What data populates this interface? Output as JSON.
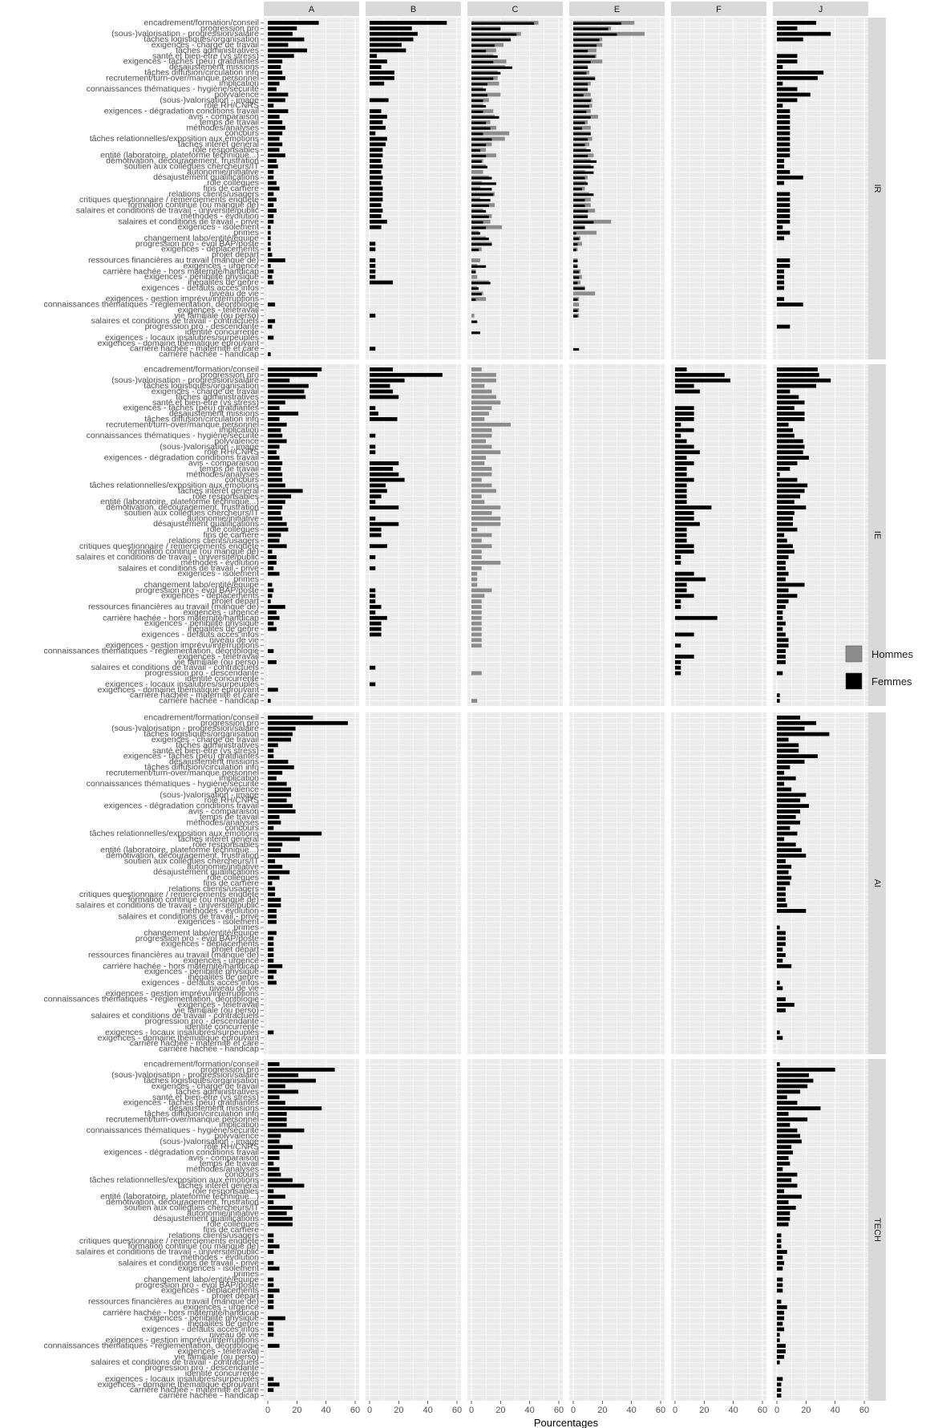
{
  "chart_data": {
    "type": "bar",
    "orientation": "horizontal",
    "facet_columns": [
      "A",
      "B",
      "C",
      "E",
      "F",
      "J"
    ],
    "facet_rows": [
      "IR",
      "IE",
      "AI",
      "TECH"
    ],
    "xlabel": "Pourcentages",
    "xlim": [
      0,
      60
    ],
    "x_ticks": [
      0,
      20,
      40,
      60
    ],
    "legend": {
      "placement": "right",
      "entries": [
        "Hommes",
        "Femmes"
      ]
    },
    "colors": {
      "Hommes": "#8c8c8c",
      "Femmes": "#000000",
      "panel_bg": "#ebebeb",
      "grid": "#ffffff",
      "strip_bg": "#d9d9d9"
    },
    "grid": true,
    "categories": [
      "encadrement/formation/conseil",
      "progression pro",
      "(sous-)valorisation - progression/salaire",
      "tâches logistiques/organisation",
      "exigences - charge de travail",
      "tâches administratives",
      "santé et bien-être (vs stress)",
      "exigences - tâches (peu) gratifiantes",
      "désajustement missions",
      "tâches diffusion/circulation info",
      "recrutement/turn-over/manque personnel",
      "implication",
      "connaissances thématiques - hygiène/sécurité",
      "polyvalence",
      "(sous-)valorisation - image",
      "rôle RH/CNRS",
      "exigences - dégradation conditions travail",
      "avis - comparaison",
      "temps de travail",
      "méthodes/analyses",
      "concours",
      "tâches relationnelles/exposition aux émotions",
      "tâches intérêt général",
      "rôle responsables",
      "entité (laboratoire, plateforme technique...)",
      "démotivation, découragement, frustration",
      "soutien aux collègues chercheurs/IT",
      "autonomie/initiative",
      "désajustement qualifications",
      "rôle collègues",
      "fins de carrière",
      "relations clients/usagers",
      "critiques questionnaire / remerciements enquête",
      "formation continue (ou manque de)",
      "salaires et conditions de travail - université/public",
      "méthodes - évolution",
      "salaires et conditions de travail - privé",
      "exigences - isolement",
      "primes",
      "changement labo/entité/équipe",
      "progression pro - évol BAP/poste",
      "exigences - déplacements",
      "projet départ",
      "ressources financières au travail (manque de)",
      "exigences - urgence",
      "carrière hachée - hors maternité/handicap",
      "exigences - pénibilité physique",
      "inégalités de genre",
      "exigences - défauts accès infos",
      "niveau de vie",
      "exigences - gestion imprévu/interruptions",
      "connaissances thématiques - réglementation, déontologie",
      "exigences - télétravail",
      "vie familiale (ou perso)",
      "salaires et conditions de travail - contractuels",
      "progression pro - descendante",
      "identité concurrente",
      "exigences - locaux insalubres/surpeuplés",
      "exigences - domaine thématique éprouvant",
      "carrière hachée - maternité et care",
      "carrière hachée - handicap"
    ],
    "panels": [
      {
        "row": "IR",
        "col": "A",
        "Femmes": [
          35,
          20,
          17,
          25,
          14,
          27,
          18,
          10,
          9,
          10,
          12,
          8,
          6,
          14,
          12,
          4,
          14,
          8,
          10,
          12,
          10,
          8,
          10,
          8,
          12,
          6,
          7,
          4,
          4,
          6,
          8,
          4,
          6,
          4,
          6,
          4,
          4,
          2,
          2,
          2,
          2,
          2,
          3,
          12,
          2,
          4,
          3,
          4,
          0,
          0,
          0,
          5,
          0,
          0,
          5,
          3,
          0,
          4,
          0,
          0,
          2
        ],
        "Hommes": []
      },
      {
        "row": "IR",
        "col": "B",
        "Femmes": [
          53,
          29,
          33,
          30,
          22,
          25,
          5,
          12,
          8,
          17,
          17,
          10,
          0,
          0,
          13,
          0,
          8,
          12,
          9,
          11,
          4,
          12,
          11,
          9,
          9,
          8,
          9,
          8,
          9,
          8,
          9,
          9,
          9,
          8,
          9,
          8,
          12,
          8,
          0,
          0,
          4,
          4,
          0,
          4,
          4,
          4,
          4,
          16,
          0,
          0,
          0,
          0,
          0,
          4,
          0,
          0,
          0,
          0,
          0,
          4,
          0
        ],
        "Hommes": []
      },
      {
        "row": "IR",
        "col": "C",
        "Femmes": [
          43,
          20,
          31,
          27,
          16,
          10,
          18,
          15,
          28,
          20,
          15,
          11,
          10,
          11,
          8,
          10,
          8,
          19,
          10,
          13,
          8,
          14,
          10,
          6,
          10,
          7,
          11,
          0,
          14,
          17,
          14,
          15,
          13,
          12,
          10,
          12,
          8,
          10,
          6,
          12,
          14,
          5,
          0,
          0,
          10,
          3,
          0,
          13,
          5,
          7,
          3,
          0,
          0,
          0,
          4,
          0,
          6,
          0,
          0,
          0,
          0
        ],
        "Hommes": [
          46,
          20,
          34,
          27,
          22,
          17,
          15,
          24,
          23,
          18,
          18,
          19,
          8,
          20,
          12,
          8,
          15,
          16,
          13,
          17,
          26,
          23,
          14,
          10,
          17,
          8,
          10,
          8,
          12,
          7,
          6,
          16,
          6,
          16,
          8,
          14,
          13,
          21,
          5,
          10,
          14,
          7,
          0,
          6,
          4,
          3,
          4,
          12,
          4,
          8,
          10,
          0,
          0,
          2,
          0,
          0,
          0,
          0,
          0,
          0,
          0
        ]
      },
      {
        "row": "IR",
        "col": "E",
        "Femmes": [
          33,
          24,
          30,
          18,
          16,
          10,
          15,
          12,
          10,
          9,
          15,
          10,
          10,
          7,
          12,
          11,
          9,
          12,
          8,
          6,
          12,
          10,
          8,
          12,
          10,
          16,
          14,
          14,
          8,
          10,
          6,
          14,
          8,
          8,
          10,
          10,
          14,
          8,
          2,
          4,
          3,
          2,
          0,
          3,
          3,
          4,
          4,
          3,
          8,
          0,
          3,
          0,
          3,
          3,
          0,
          0,
          0,
          0,
          0,
          4,
          0
        ],
        "Hommes": [
          42,
          26,
          49,
          20,
          20,
          16,
          16,
          20,
          10,
          11,
          15,
          12,
          10,
          12,
          13,
          13,
          12,
          17,
          10,
          12,
          12,
          13,
          11,
          9,
          14,
          12,
          12,
          8,
          10,
          9,
          8,
          11,
          12,
          12,
          15,
          10,
          26,
          8,
          16,
          5,
          6,
          3,
          0,
          3,
          3,
          5,
          6,
          5,
          8,
          15,
          4,
          4,
          4,
          4,
          0,
          0,
          0,
          0,
          0,
          0,
          0
        ]
      },
      {
        "row": "IR",
        "col": "F",
        "Femmes": [],
        "Hommes": []
      },
      {
        "row": "IR",
        "col": "J",
        "Femmes": [
          27,
          14,
          37,
          18,
          0,
          0,
          14,
          14,
          4,
          32,
          28,
          4,
          14,
          23,
          14,
          4,
          9,
          9,
          9,
          9,
          9,
          9,
          9,
          9,
          9,
          5,
          5,
          9,
          18,
          5,
          0,
          9,
          9,
          9,
          9,
          9,
          9,
          4,
          9,
          5,
          0,
          0,
          0,
          9,
          9,
          5,
          5,
          5,
          5,
          0,
          5,
          18,
          0,
          0,
          0,
          9,
          0,
          0,
          0,
          0,
          0
        ],
        "Hommes": []
      },
      {
        "row": "IE",
        "col": "A",
        "Femmes": [
          37,
          34,
          15,
          28,
          25,
          26,
          12,
          8,
          21,
          8,
          13,
          9,
          10,
          13,
          8,
          6,
          8,
          10,
          9,
          10,
          10,
          12,
          24,
          16,
          12,
          10,
          9,
          10,
          13,
          14,
          9,
          8,
          13,
          3,
          6,
          6,
          4,
          8,
          0,
          3,
          4,
          3,
          2,
          12,
          6,
          8,
          4,
          6,
          0,
          0,
          0,
          4,
          0,
          6,
          0,
          0,
          0,
          0,
          7,
          0,
          2
        ],
        "Hommes": []
      },
      {
        "row": "IE",
        "col": "B",
        "Femmes": [
          16,
          50,
          24,
          14,
          16,
          20,
          0,
          4,
          6,
          19,
          0,
          0,
          4,
          0,
          4,
          4,
          0,
          20,
          16,
          20,
          24,
          11,
          12,
          8,
          4,
          20,
          0,
          4,
          20,
          8,
          8,
          0,
          12,
          0,
          4,
          0,
          4,
          0,
          0,
          0,
          4,
          4,
          4,
          8,
          4,
          12,
          8,
          8,
          8,
          0,
          0,
          0,
          0,
          0,
          4,
          0,
          0,
          4,
          0,
          0,
          0
        ],
        "Hommes": []
      },
      {
        "row": "IE",
        "col": "C",
        "Femmes": [],
        "Hommes": [
          7,
          17,
          17,
          9,
          14,
          17,
          20,
          14,
          12,
          9,
          27,
          14,
          14,
          10,
          14,
          20,
          10,
          9,
          14,
          14,
          7,
          14,
          17,
          7,
          9,
          20,
          14,
          20,
          20,
          4,
          14,
          7,
          14,
          7,
          7,
          20,
          7,
          4,
          4,
          4,
          14,
          9,
          7,
          7,
          7,
          7,
          7,
          7,
          7,
          7,
          7,
          0,
          0,
          0,
          0,
          7,
          0,
          0,
          0,
          0,
          4
        ]
      },
      {
        "row": "IE",
        "col": "E",
        "Femmes": [],
        "Hommes": []
      },
      {
        "row": "IE",
        "col": "F",
        "Femmes": [
          8,
          34,
          38,
          13,
          17,
          0,
          0,
          13,
          13,
          13,
          4,
          13,
          4,
          8,
          13,
          17,
          8,
          13,
          8,
          8,
          13,
          8,
          8,
          8,
          8,
          25,
          13,
          13,
          17,
          8,
          8,
          8,
          13,
          13,
          4,
          4,
          0,
          13,
          21,
          8,
          8,
          13,
          4,
          4,
          0,
          29,
          0,
          0,
          13,
          0,
          4,
          0,
          13,
          4,
          4,
          4,
          0,
          0,
          0,
          0,
          0
        ],
        "Hommes": []
      },
      {
        "row": "IE",
        "col": "J",
        "Femmes": [
          28,
          29,
          37,
          27,
          9,
          15,
          19,
          12,
          19,
          19,
          8,
          11,
          12,
          18,
          19,
          18,
          22,
          14,
          9,
          2,
          14,
          21,
          19,
          16,
          12,
          20,
          12,
          11,
          11,
          14,
          5,
          7,
          11,
          12,
          8,
          6,
          6,
          8,
          6,
          19,
          8,
          14,
          8,
          6,
          4,
          4,
          6,
          4,
          6,
          8,
          8,
          6,
          6,
          6,
          0,
          4,
          0,
          0,
          0,
          2,
          2
        ],
        "Hommes": []
      },
      {
        "row": "AI",
        "col": "A",
        "Femmes": [
          31,
          55,
          19,
          17,
          16,
          7,
          4,
          4,
          14,
          18,
          10,
          6,
          13,
          16,
          16,
          13,
          17,
          19,
          8,
          9,
          4,
          37,
          22,
          10,
          9,
          22,
          5,
          10,
          15,
          8,
          3,
          5,
          5,
          9,
          9,
          6,
          6,
          6,
          0,
          6,
          4,
          4,
          4,
          4,
          4,
          10,
          6,
          4,
          6,
          0,
          0,
          0,
          0,
          0,
          0,
          0,
          0,
          4,
          0,
          0,
          0
        ],
        "Hommes": []
      },
      {
        "row": "AI",
        "col": "J",
        "Femmes": [
          16,
          27,
          19,
          36,
          8,
          15,
          15,
          28,
          19,
          9,
          5,
          13,
          5,
          10,
          20,
          16,
          22,
          16,
          13,
          16,
          9,
          14,
          5,
          13,
          17,
          20,
          6,
          10,
          8,
          10,
          9,
          6,
          6,
          6,
          7,
          20,
          0,
          0,
          2,
          6,
          6,
          6,
          4,
          6,
          4,
          10,
          0,
          0,
          2,
          4,
          0,
          6,
          12,
          6,
          0,
          0,
          0,
          2,
          4,
          0,
          0
        ],
        "Hommes": []
      },
      {
        "row": "TECH",
        "col": "A",
        "Femmes": [
          8,
          46,
          21,
          33,
          12,
          21,
          8,
          12,
          37,
          13,
          13,
          13,
          25,
          9,
          8,
          17,
          8,
          8,
          4,
          8,
          9,
          17,
          25,
          4,
          12,
          4,
          17,
          13,
          17,
          17,
          0,
          4,
          4,
          8,
          4,
          0,
          4,
          8,
          0,
          4,
          4,
          8,
          4,
          4,
          4,
          0,
          12,
          4,
          4,
          4,
          0,
          8,
          0,
          0,
          0,
          0,
          0,
          4,
          8,
          4,
          0
        ],
        "Hommes": []
      },
      {
        "row": "TECH",
        "col": "J",
        "Femmes": [
          2,
          40,
          22,
          25,
          21,
          16,
          7,
          14,
          30,
          8,
          21,
          9,
          14,
          16,
          17,
          10,
          11,
          8,
          9,
          4,
          14,
          10,
          14,
          5,
          17,
          8,
          13,
          9,
          9,
          8,
          0,
          3,
          3,
          3,
          7,
          4,
          5,
          4,
          0,
          4,
          4,
          4,
          0,
          3,
          7,
          5,
          5,
          4,
          5,
          2,
          2,
          6,
          6,
          5,
          2,
          0,
          0,
          4,
          3,
          3,
          3
        ],
        "Hommes": []
      }
    ]
  }
}
